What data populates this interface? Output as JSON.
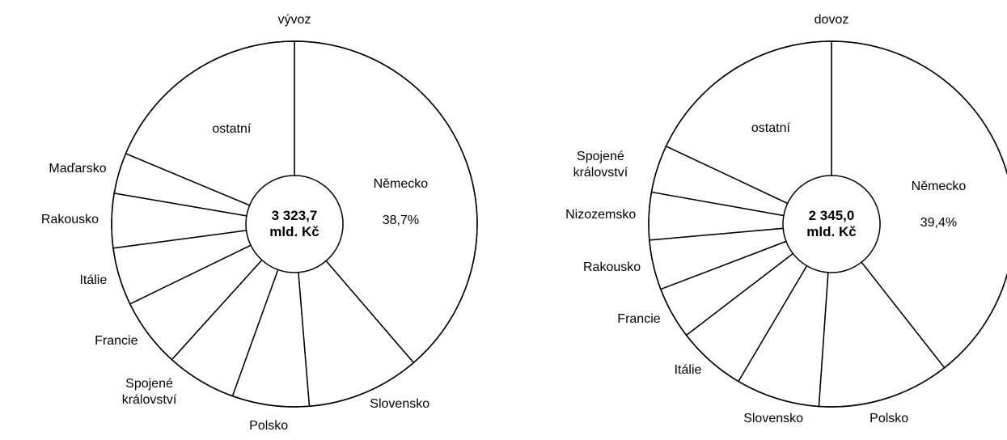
{
  "chart_data": [
    {
      "type": "donut",
      "title": "vývoz",
      "categories": [
        "Německo",
        "Slovensko",
        "Polsko",
        "Spojené království",
        "Francie",
        "Itálie",
        "Rakousko",
        "Maďarsko",
        "ostatní"
      ],
      "values": [
        38.7,
        10.0,
        6.8,
        6.2,
        6.1,
        5.1,
        4.8,
        3.6,
        18.7
      ],
      "value_labels": [
        "38,7%",
        null,
        null,
        null,
        null,
        null,
        null,
        null,
        null
      ],
      "center_text": [
        "3 323,7",
        "mld. Kč"
      ]
    },
    {
      "type": "donut",
      "title": "dovoz",
      "categories": [
        "Německo",
        "Polsko",
        "Slovensko",
        "Itálie",
        "Francie",
        "Rakousko",
        "Nizozemsko",
        "Spojené království",
        "ostatní"
      ],
      "values": [
        39.4,
        11.7,
        7.4,
        6.1,
        4.6,
        4.4,
        4.2,
        4.2,
        18.0
      ],
      "value_labels": [
        "39,4%",
        null,
        null,
        null,
        null,
        null,
        null,
        null,
        null
      ],
      "center_text": [
        "2 345,0",
        "mld. Kč"
      ]
    }
  ]
}
